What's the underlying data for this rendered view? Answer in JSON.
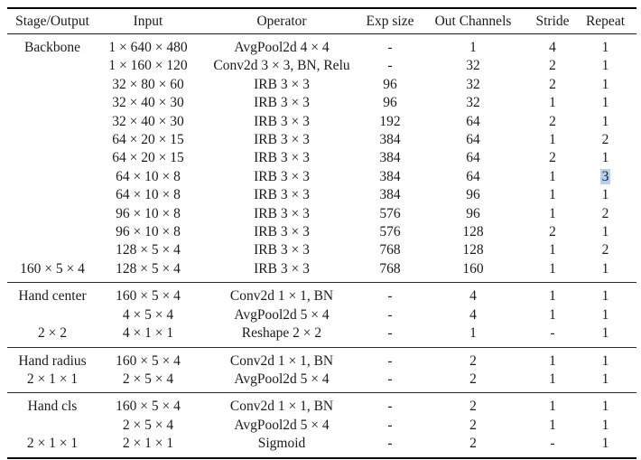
{
  "selection": {
    "highlight_color": "#b5cff2",
    "selected_value": "3"
  },
  "table": {
    "columns": [
      {
        "key": "stage",
        "label": "Stage/Output"
      },
      {
        "key": "input",
        "label": "Input"
      },
      {
        "key": "operator",
        "label": "Operator"
      },
      {
        "key": "exp_size",
        "label": "Exp size"
      },
      {
        "key": "out_channels",
        "label": "Out Channels"
      },
      {
        "key": "stride",
        "label": "Stride"
      },
      {
        "key": "repeat",
        "label": "Repeat"
      }
    ],
    "sections": [
      {
        "id": "backbone",
        "rows": [
          {
            "stage": "Backbone",
            "input": "1 × 640 × 480",
            "operator": "AvgPool2d 4 × 4",
            "exp_size": "-",
            "out_channels": "1",
            "stride": "4",
            "repeat": "1"
          },
          {
            "stage": "",
            "input": "1 × 160 × 120",
            "operator": "Conv2d 3 × 3, BN, Relu",
            "exp_size": "-",
            "out_channels": "32",
            "stride": "2",
            "repeat": "1"
          },
          {
            "stage": "",
            "input": "32 × 80 × 60",
            "operator": "IRB 3 × 3",
            "exp_size": "96",
            "out_channels": "32",
            "stride": "2",
            "repeat": "1"
          },
          {
            "stage": "",
            "input": "32 × 40 × 30",
            "operator": "IRB 3 × 3",
            "exp_size": "96",
            "out_channels": "32",
            "stride": "1",
            "repeat": "1"
          },
          {
            "stage": "",
            "input": "32 × 40 × 30",
            "operator": "IRB 3 × 3",
            "exp_size": "192",
            "out_channels": "64",
            "stride": "2",
            "repeat": "1"
          },
          {
            "stage": "",
            "input": "64 × 20 × 15",
            "operator": "IRB 3 × 3",
            "exp_size": "384",
            "out_channels": "64",
            "stride": "1",
            "repeat": "2"
          },
          {
            "stage": "",
            "input": "64 × 20 × 15",
            "operator": "IRB 3 × 3",
            "exp_size": "384",
            "out_channels": "64",
            "stride": "2",
            "repeat": "1"
          },
          {
            "stage": "",
            "input": "64 × 10 × 8",
            "operator": "IRB 3 × 3",
            "exp_size": "384",
            "out_channels": "64",
            "stride": "1",
            "repeat": "3",
            "repeat_selected": true
          },
          {
            "stage": "",
            "input": "64 × 10 × 8",
            "operator": "IRB 3 × 3",
            "exp_size": "384",
            "out_channels": "96",
            "stride": "1",
            "repeat": "1"
          },
          {
            "stage": "",
            "input": "96 × 10 × 8",
            "operator": "IRB 3 × 3",
            "exp_size": "576",
            "out_channels": "96",
            "stride": "1",
            "repeat": "2"
          },
          {
            "stage": "",
            "input": "96 × 10 × 8",
            "operator": "IRB 3 × 3",
            "exp_size": "576",
            "out_channels": "128",
            "stride": "2",
            "repeat": "1"
          },
          {
            "stage": "",
            "input": "128 × 5 × 4",
            "operator": "IRB 3 × 3",
            "exp_size": "768",
            "out_channels": "128",
            "stride": "1",
            "repeat": "2"
          },
          {
            "stage": "160 × 5 × 4",
            "input": "128 × 5 × 4",
            "operator": "IRB 3 × 3",
            "exp_size": "768",
            "out_channels": "160",
            "stride": "1",
            "repeat": "1"
          }
        ]
      },
      {
        "id": "hand-center",
        "rows": [
          {
            "stage": "Hand center",
            "input": "160 × 5 × 4",
            "operator": "Conv2d 1 × 1, BN",
            "exp_size": "-",
            "out_channels": "4",
            "stride": "1",
            "repeat": "1"
          },
          {
            "stage": "",
            "input": "4 × 5 × 4",
            "operator": "AvgPool2d 5 × 4",
            "exp_size": "-",
            "out_channels": "4",
            "stride": "1",
            "repeat": "1"
          },
          {
            "stage": "2 × 2",
            "input": "4 × 1 × 1",
            "operator": "Reshape 2 × 2",
            "exp_size": "-",
            "out_channels": "1",
            "stride": "-",
            "repeat": "1"
          }
        ]
      },
      {
        "id": "hand-radius",
        "rows": [
          {
            "stage": "Hand radius",
            "input": "160 × 5 × 4",
            "operator": "Conv2d 1 × 1, BN",
            "exp_size": "-",
            "out_channels": "2",
            "stride": "1",
            "repeat": "1"
          },
          {
            "stage": "2 × 1 × 1",
            "input": "2 × 5 × 4",
            "operator": "AvgPool2d 5 × 4",
            "exp_size": "-",
            "out_channels": "2",
            "stride": "1",
            "repeat": "1"
          }
        ]
      },
      {
        "id": "hand-cls",
        "rows": [
          {
            "stage": "Hand cls",
            "input": "160 × 5 × 4",
            "operator": "Conv2d 1 × 1, BN",
            "exp_size": "-",
            "out_channels": "2",
            "stride": "1",
            "repeat": "1"
          },
          {
            "stage": "",
            "input": "2 × 5 × 4",
            "operator": "AvgPool2d 5 × 4",
            "exp_size": "-",
            "out_channels": "2",
            "stride": "1",
            "repeat": "1"
          },
          {
            "stage": "2 × 1 × 1",
            "input": "2 × 1 × 1",
            "operator": "Sigmoid",
            "exp_size": "-",
            "out_channels": "2",
            "stride": "-",
            "repeat": "1"
          }
        ]
      }
    ]
  }
}
